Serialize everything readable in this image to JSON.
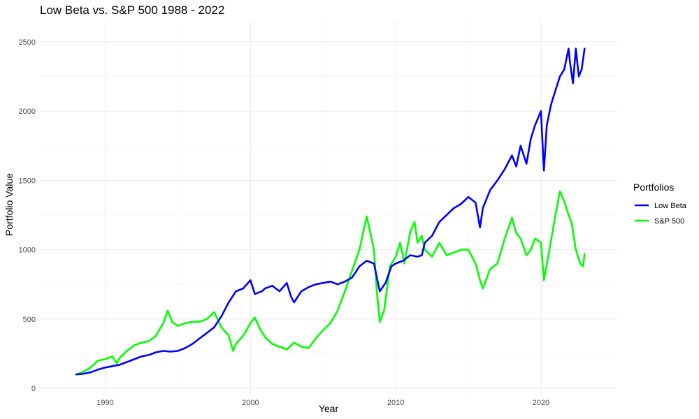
{
  "chart_data": {
    "type": "line",
    "title": "Low Beta vs. S&P 500 1988 - 2022",
    "xlabel": "Year",
    "ylabel": "Portfolio Value",
    "xlim": [
      1985.5,
      2025.2
    ],
    "ylim": [
      -50,
      2650
    ],
    "x_ticks": [
      1990,
      2000,
      2010,
      2020
    ],
    "x_minor_ticks": [
      1995,
      2005,
      2015
    ],
    "y_ticks": [
      0,
      500,
      1000,
      1500,
      2000,
      2500
    ],
    "y_minor_ticks": [
      250,
      750,
      1250,
      1750,
      2250
    ],
    "grid": true,
    "legend": {
      "title": "Portfolios",
      "position": "right"
    },
    "series": [
      {
        "name": "Low Beta",
        "color": "#0000ff",
        "points": [
          [
            1988.0,
            100
          ],
          [
            1988.5,
            105
          ],
          [
            1989.0,
            115
          ],
          [
            1989.5,
            135
          ],
          [
            1990.0,
            150
          ],
          [
            1990.5,
            160
          ],
          [
            1991.0,
            170
          ],
          [
            1991.5,
            190
          ],
          [
            1992.0,
            210
          ],
          [
            1992.5,
            230
          ],
          [
            1993.0,
            240
          ],
          [
            1993.5,
            260
          ],
          [
            1994.0,
            270
          ],
          [
            1994.5,
            265
          ],
          [
            1995.0,
            270
          ],
          [
            1995.5,
            290
          ],
          [
            1996.0,
            320
          ],
          [
            1996.5,
            360
          ],
          [
            1997.0,
            400
          ],
          [
            1997.5,
            440
          ],
          [
            1998.0,
            520
          ],
          [
            1998.5,
            620
          ],
          [
            1999.0,
            700
          ],
          [
            1999.5,
            720
          ],
          [
            2000.0,
            780
          ],
          [
            2000.3,
            680
          ],
          [
            2000.8,
            700
          ],
          [
            2001.0,
            720
          ],
          [
            2001.5,
            740
          ],
          [
            2002.0,
            700
          ],
          [
            2002.5,
            760
          ],
          [
            2002.8,
            660
          ],
          [
            2003.0,
            620
          ],
          [
            2003.5,
            700
          ],
          [
            2004.0,
            730
          ],
          [
            2004.5,
            750
          ],
          [
            2005.0,
            760
          ],
          [
            2005.5,
            770
          ],
          [
            2006.0,
            750
          ],
          [
            2006.5,
            770
          ],
          [
            2007.0,
            800
          ],
          [
            2007.5,
            880
          ],
          [
            2008.0,
            920
          ],
          [
            2008.5,
            900
          ],
          [
            2008.9,
            700
          ],
          [
            2009.3,
            760
          ],
          [
            2009.7,
            880
          ],
          [
            2010.0,
            900
          ],
          [
            2010.5,
            920
          ],
          [
            2011.0,
            960
          ],
          [
            2011.5,
            950
          ],
          [
            2011.8,
            960
          ],
          [
            2012.0,
            1050
          ],
          [
            2012.5,
            1100
          ],
          [
            2013.0,
            1200
          ],
          [
            2013.5,
            1250
          ],
          [
            2014.0,
            1300
          ],
          [
            2014.5,
            1330
          ],
          [
            2015.0,
            1380
          ],
          [
            2015.5,
            1340
          ],
          [
            2015.8,
            1160
          ],
          [
            2016.0,
            1300
          ],
          [
            2016.5,
            1430
          ],
          [
            2017.0,
            1500
          ],
          [
            2017.5,
            1580
          ],
          [
            2018.0,
            1680
          ],
          [
            2018.3,
            1600
          ],
          [
            2018.6,
            1750
          ],
          [
            2019.0,
            1620
          ],
          [
            2019.3,
            1800
          ],
          [
            2019.6,
            1900
          ],
          [
            2020.0,
            2000
          ],
          [
            2020.2,
            1570
          ],
          [
            2020.4,
            1900
          ],
          [
            2020.7,
            2050
          ],
          [
            2021.0,
            2150
          ],
          [
            2021.3,
            2250
          ],
          [
            2021.6,
            2300
          ],
          [
            2021.9,
            2450
          ],
          [
            2022.0,
            2350
          ],
          [
            2022.2,
            2200
          ],
          [
            2022.4,
            2450
          ],
          [
            2022.6,
            2250
          ],
          [
            2022.8,
            2300
          ],
          [
            2023.0,
            2450
          ]
        ]
      },
      {
        "name": "S&P 500",
        "color": "#00ff00",
        "points": [
          [
            1988.0,
            100
          ],
          [
            1988.5,
            120
          ],
          [
            1989.0,
            150
          ],
          [
            1989.5,
            200
          ],
          [
            1990.0,
            210
          ],
          [
            1990.5,
            230
          ],
          [
            1990.8,
            180
          ],
          [
            1991.0,
            220
          ],
          [
            1991.5,
            270
          ],
          [
            1992.0,
            310
          ],
          [
            1992.5,
            330
          ],
          [
            1993.0,
            340
          ],
          [
            1993.5,
            380
          ],
          [
            1994.0,
            470
          ],
          [
            1994.3,
            560
          ],
          [
            1994.6,
            480
          ],
          [
            1995.0,
            450
          ],
          [
            1995.5,
            470
          ],
          [
            1996.0,
            480
          ],
          [
            1996.5,
            480
          ],
          [
            1997.0,
            500
          ],
          [
            1997.5,
            550
          ],
          [
            1998.0,
            440
          ],
          [
            1998.5,
            380
          ],
          [
            1998.8,
            270
          ],
          [
            1999.0,
            320
          ],
          [
            1999.5,
            380
          ],
          [
            2000.0,
            470
          ],
          [
            2000.3,
            510
          ],
          [
            2000.7,
            420
          ],
          [
            2001.0,
            370
          ],
          [
            2001.5,
            320
          ],
          [
            2002.0,
            300
          ],
          [
            2002.5,
            280
          ],
          [
            2003.0,
            330
          ],
          [
            2003.5,
            300
          ],
          [
            2004.0,
            290
          ],
          [
            2004.5,
            360
          ],
          [
            2005.0,
            420
          ],
          [
            2005.5,
            470
          ],
          [
            2006.0,
            560
          ],
          [
            2006.5,
            700
          ],
          [
            2007.0,
            850
          ],
          [
            2007.5,
            1000
          ],
          [
            2008.0,
            1240
          ],
          [
            2008.3,
            1100
          ],
          [
            2008.5,
            1000
          ],
          [
            2008.7,
            700
          ],
          [
            2008.9,
            480
          ],
          [
            2009.2,
            560
          ],
          [
            2009.6,
            880
          ],
          [
            2010.0,
            950
          ],
          [
            2010.3,
            1050
          ],
          [
            2010.6,
            900
          ],
          [
            2011.0,
            1130
          ],
          [
            2011.3,
            1200
          ],
          [
            2011.5,
            1050
          ],
          [
            2011.8,
            1100
          ],
          [
            2012.0,
            1000
          ],
          [
            2012.5,
            950
          ],
          [
            2013.0,
            1050
          ],
          [
            2013.5,
            960
          ],
          [
            2014.0,
            980
          ],
          [
            2014.5,
            1000
          ],
          [
            2015.0,
            1000
          ],
          [
            2015.5,
            900
          ],
          [
            2015.8,
            780
          ],
          [
            2016.0,
            720
          ],
          [
            2016.5,
            860
          ],
          [
            2017.0,
            900
          ],
          [
            2017.5,
            1080
          ],
          [
            2018.0,
            1230
          ],
          [
            2018.3,
            1120
          ],
          [
            2018.6,
            1080
          ],
          [
            2019.0,
            960
          ],
          [
            2019.3,
            1000
          ],
          [
            2019.6,
            1080
          ],
          [
            2020.0,
            1050
          ],
          [
            2020.2,
            780
          ],
          [
            2020.5,
            950
          ],
          [
            2021.0,
            1250
          ],
          [
            2021.3,
            1420
          ],
          [
            2021.6,
            1350
          ],
          [
            2021.9,
            1250
          ],
          [
            2022.1,
            1200
          ],
          [
            2022.4,
            1000
          ],
          [
            2022.7,
            900
          ],
          [
            2022.9,
            880
          ],
          [
            2023.0,
            970
          ]
        ]
      }
    ]
  }
}
